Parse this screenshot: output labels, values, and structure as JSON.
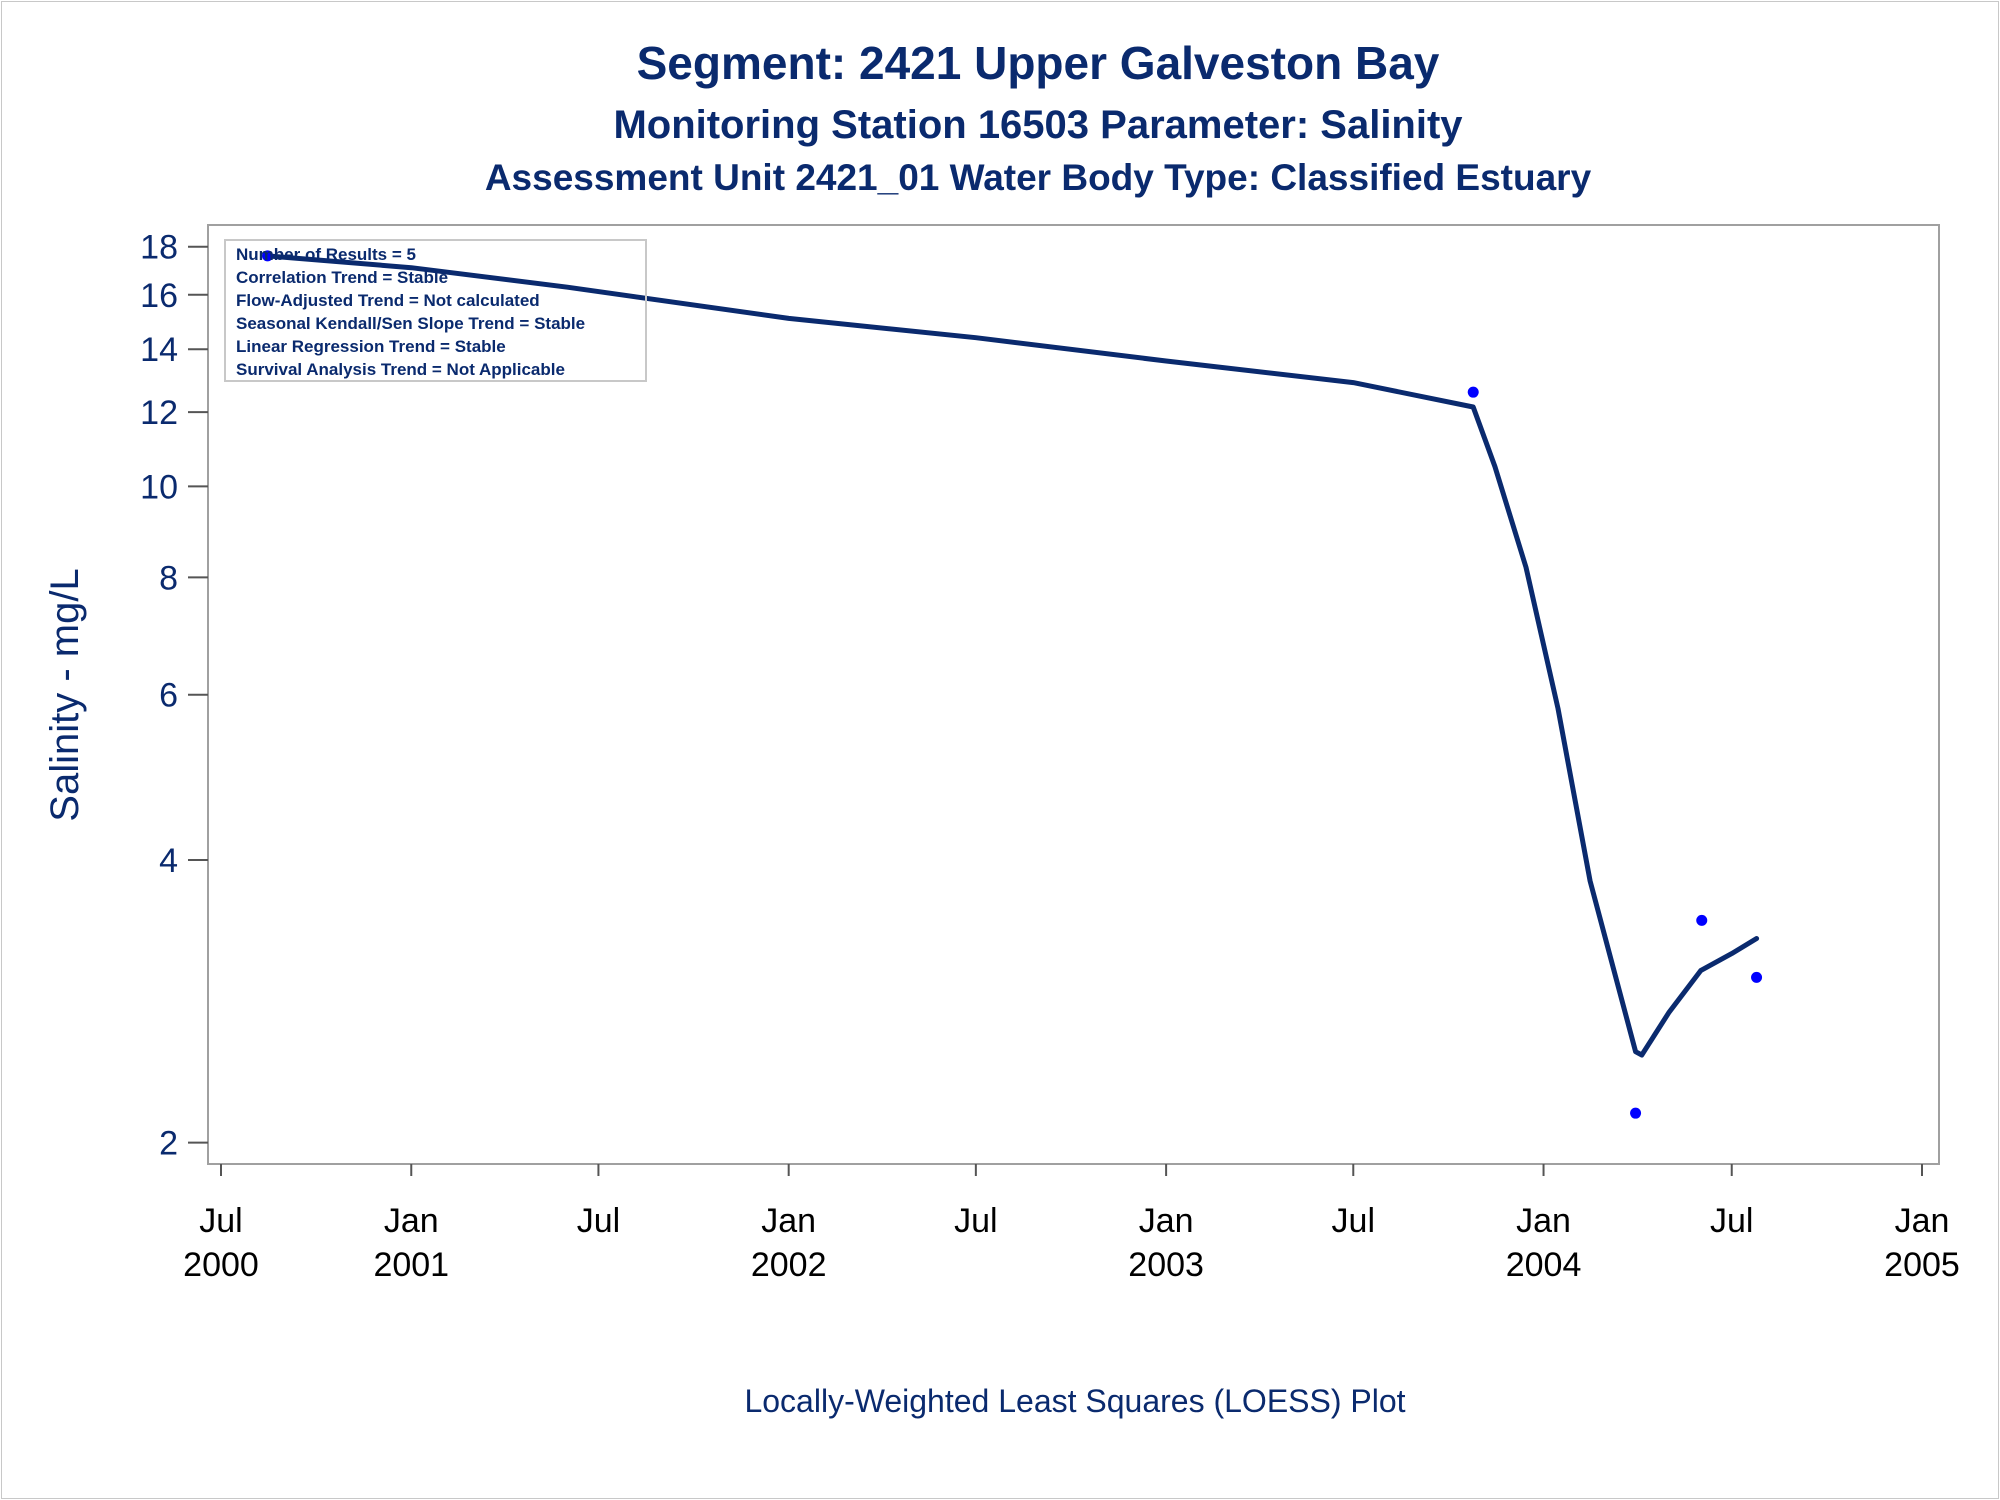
{
  "titles": {
    "line1": "Segment: 2421  Upper Galveston Bay",
    "line2": "Monitoring Station 16503 Parameter: Salinity",
    "line3": "Assessment Unit 2421_01   Water Body Type: Classified Estuary"
  },
  "footnote": "Locally-Weighted Least Squares (LOESS) Plot",
  "inset": {
    "lines": [
      "Number of Results = 5",
      "Correlation Trend = Stable",
      "Flow-Adjusted Trend = Not calculated",
      "Seasonal Kendall/Sen Slope Trend = Stable",
      "Linear Regression Trend = Stable",
      "Survival Analysis Trend = Not Applicable"
    ]
  },
  "colors": {
    "text": "#0a2a6e",
    "curve": "#0a2a6e",
    "points": "#0000ff",
    "frame": "#a0a0a0"
  },
  "chart_data": {
    "type": "scatter",
    "title": "Segment: 2421  Upper Galveston Bay",
    "ylabel": "Salinity - mg/L",
    "xlabel": "",
    "yscale": "log",
    "ylim": [
      1.95,
      18.3
    ],
    "xlim": [
      "2000-07-01",
      "2005-01-01"
    ],
    "yticks": [
      2,
      4,
      6,
      8,
      10,
      12,
      14,
      16,
      18
    ],
    "xticks": [
      {
        "date": "2000-07-01",
        "label": [
          "Jul",
          "2000"
        ]
      },
      {
        "date": "2001-01-01",
        "label": [
          "Jan",
          "2001"
        ]
      },
      {
        "date": "2001-07-01",
        "label": [
          "Jul",
          ""
        ]
      },
      {
        "date": "2002-01-01",
        "label": [
          "Jan",
          "2002"
        ]
      },
      {
        "date": "2002-07-01",
        "label": [
          "Jul",
          ""
        ]
      },
      {
        "date": "2003-01-01",
        "label": [
          "Jan",
          "2003"
        ]
      },
      {
        "date": "2003-07-01",
        "label": [
          "Jul",
          ""
        ]
      },
      {
        "date": "2004-01-01",
        "label": [
          "Jan",
          "2004"
        ]
      },
      {
        "date": "2004-07-01",
        "label": [
          "Jul",
          ""
        ]
      },
      {
        "date": "2005-01-01",
        "label": [
          "Jan",
          "2005"
        ]
      }
    ],
    "points": [
      {
        "x": "2000-08-15",
        "y": 17.6
      },
      {
        "x": "2003-10-25",
        "y": 12.6
      },
      {
        "x": "2004-03-30",
        "y": 2.15
      },
      {
        "x": "2004-06-02",
        "y": 3.45
      },
      {
        "x": "2004-07-25",
        "y": 3.0
      }
    ],
    "loess_curve": [
      {
        "x": "2000-08-15",
        "y": 17.6
      },
      {
        "x": "2001-01-01",
        "y": 17.1
      },
      {
        "x": "2001-06-01",
        "y": 16.3
      },
      {
        "x": "2002-01-01",
        "y": 15.1
      },
      {
        "x": "2002-07-01",
        "y": 14.4
      },
      {
        "x": "2003-01-01",
        "y": 13.6
      },
      {
        "x": "2003-07-01",
        "y": 12.9
      },
      {
        "x": "2003-10-25",
        "y": 12.15
      },
      {
        "x": "2003-11-15",
        "y": 10.5
      },
      {
        "x": "2003-12-15",
        "y": 8.2
      },
      {
        "x": "2004-01-15",
        "y": 5.8
      },
      {
        "x": "2004-02-15",
        "y": 3.8
      },
      {
        "x": "2004-03-30",
        "y": 2.5
      },
      {
        "x": "2004-04-05",
        "y": 2.48
      },
      {
        "x": "2004-05-01",
        "y": 2.75
      },
      {
        "x": "2004-06-01",
        "y": 3.05
      },
      {
        "x": "2004-07-01",
        "y": 3.18
      },
      {
        "x": "2004-07-25",
        "y": 3.3
      }
    ]
  }
}
